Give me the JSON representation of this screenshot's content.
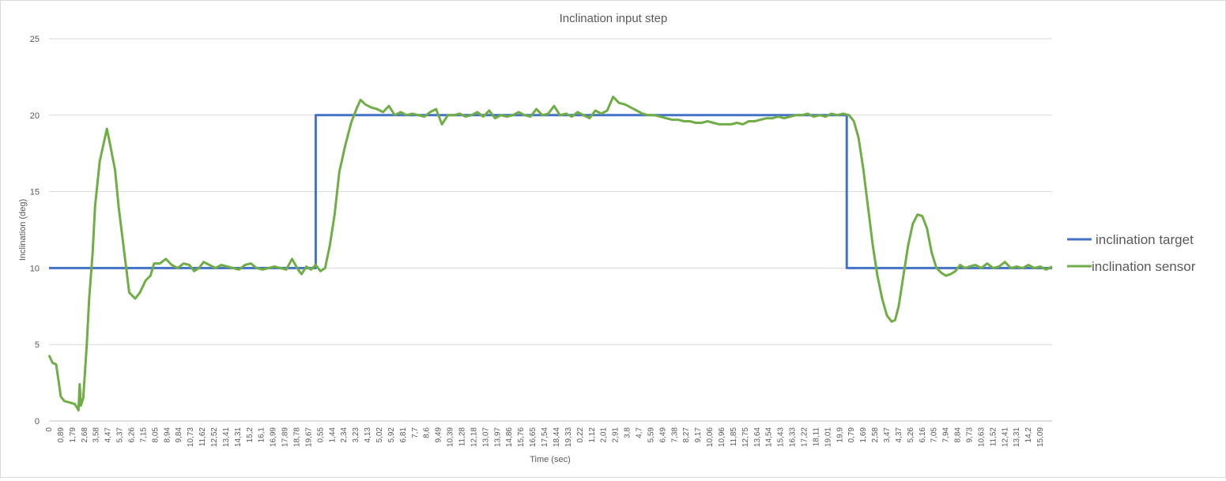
{
  "chart_data": {
    "type": "line",
    "title": "Inclination input step",
    "xlabel": "Time (sec)",
    "ylabel": "Inclination (deg)",
    "ylim": [
      0,
      25
    ],
    "yticks": [
      "0",
      "5",
      "10",
      "15",
      "20",
      "25"
    ],
    "x_categories": [
      "0",
      "0,89",
      "1,79",
      "2,68",
      "3,58",
      "4,47",
      "5,37",
      "6,26",
      "7,15",
      "8,05",
      "8,94",
      "9,84",
      "10,73",
      "11,62",
      "12,52",
      "13,41",
      "14,31",
      "15,2",
      "16,1",
      "16,99",
      "17,89",
      "18,78",
      "19,67",
      "0,55",
      "1,44",
      "2,34",
      "3,23",
      "4,13",
      "5,02",
      "5,92",
      "6,81",
      "7,7",
      "8,6",
      "9,49",
      "10,39",
      "11,28",
      "12,18",
      "13,07",
      "13,97",
      "14,86",
      "15,76",
      "16,65",
      "17,54",
      "18,44",
      "19,33",
      "0,22",
      "1,12",
      "2,01",
      "2,91",
      "3,8",
      "4,7",
      "5,59",
      "6,49",
      "7,38",
      "8,27",
      "9,17",
      "10,06",
      "10,96",
      "11,85",
      "12,75",
      "13,64",
      "14,54",
      "15,43",
      "16,33",
      "17,22",
      "18,11",
      "19,01",
      "19,9",
      "0,79",
      "1,69",
      "2,58",
      "3,47",
      "4,37",
      "5,26",
      "6,16",
      "7,05",
      "7,94",
      "8,84",
      "9,73",
      "10,63",
      "11,52",
      "12,41",
      "13,31",
      "14,2",
      "15,09"
    ],
    "grid": true,
    "legend_position": "right",
    "series": [
      {
        "name": "inclination target",
        "color": "#4472c4",
        "points": [
          [
            0,
            10
          ],
          [
            22.6,
            10
          ],
          [
            22.6,
            20
          ],
          [
            67.6,
            20
          ],
          [
            67.6,
            10
          ],
          [
            85,
            10
          ]
        ]
      },
      {
        "name": "inclination sensor",
        "color": "#70ad47",
        "points": [
          [
            0,
            4.3
          ],
          [
            0.3,
            3.8
          ],
          [
            0.6,
            3.7
          ],
          [
            0.8,
            2.7
          ],
          [
            1.0,
            1.6
          ],
          [
            1.3,
            1.3
          ],
          [
            1.8,
            1.2
          ],
          [
            2.2,
            1.1
          ],
          [
            2.5,
            0.7
          ],
          [
            2.6,
            2.4
          ],
          [
            2.7,
            1.0
          ],
          [
            2.9,
            1.5
          ],
          [
            3.2,
            5.0
          ],
          [
            3.4,
            8.0
          ],
          [
            3.7,
            11.0
          ],
          [
            3.9,
            14.0
          ],
          [
            4.3,
            17.0
          ],
          [
            4.9,
            19.1
          ],
          [
            5.1,
            18.4
          ],
          [
            5.6,
            16.4
          ],
          [
            5.9,
            14.0
          ],
          [
            6.3,
            11.5
          ],
          [
            6.8,
            8.4
          ],
          [
            7.3,
            8.0
          ],
          [
            7.7,
            8.4
          ],
          [
            8.2,
            9.2
          ],
          [
            8.6,
            9.5
          ],
          [
            8.9,
            10.3
          ],
          [
            9.4,
            10.3
          ],
          [
            9.9,
            10.6
          ],
          [
            10.4,
            10.2
          ],
          [
            10.9,
            10.0
          ],
          [
            11.4,
            10.3
          ],
          [
            11.9,
            10.2
          ],
          [
            12.3,
            9.8
          ],
          [
            12.7,
            10.0
          ],
          [
            13.1,
            10.4
          ],
          [
            13.6,
            10.2
          ],
          [
            14.1,
            10.0
          ],
          [
            14.6,
            10.2
          ],
          [
            15.1,
            10.1
          ],
          [
            15.6,
            10.0
          ],
          [
            16.1,
            9.9
          ],
          [
            16.6,
            10.2
          ],
          [
            17.1,
            10.3
          ],
          [
            17.6,
            10.0
          ],
          [
            18.1,
            9.9
          ],
          [
            18.6,
            10.0
          ],
          [
            19.1,
            10.1
          ],
          [
            19.6,
            10.0
          ],
          [
            20.1,
            9.9
          ],
          [
            20.6,
            10.6
          ],
          [
            21.1,
            9.9
          ],
          [
            21.4,
            9.6
          ],
          [
            21.8,
            10.1
          ],
          [
            22.2,
            9.9
          ],
          [
            22.6,
            10.2
          ],
          [
            23.0,
            9.8
          ],
          [
            23.4,
            10.0
          ],
          [
            23.8,
            11.5
          ],
          [
            24.2,
            13.5
          ],
          [
            24.6,
            16.3
          ],
          [
            25.1,
            18.0
          ],
          [
            25.6,
            19.5
          ],
          [
            26.1,
            20.5
          ],
          [
            26.4,
            21.0
          ],
          [
            26.8,
            20.7
          ],
          [
            27.3,
            20.5
          ],
          [
            27.8,
            20.4
          ],
          [
            28.3,
            20.2
          ],
          [
            28.8,
            20.6
          ],
          [
            29.3,
            20.0
          ],
          [
            29.8,
            20.2
          ],
          [
            30.3,
            20.0
          ],
          [
            30.8,
            20.1
          ],
          [
            31.3,
            20.0
          ],
          [
            31.8,
            19.9
          ],
          [
            32.3,
            20.2
          ],
          [
            32.8,
            20.4
          ],
          [
            33.3,
            19.4
          ],
          [
            33.8,
            20.0
          ],
          [
            34.3,
            20.0
          ],
          [
            34.8,
            20.1
          ],
          [
            35.3,
            19.9
          ],
          [
            35.8,
            20.0
          ],
          [
            36.3,
            20.2
          ],
          [
            36.8,
            19.9
          ],
          [
            37.3,
            20.3
          ],
          [
            37.8,
            19.8
          ],
          [
            38.3,
            20.0
          ],
          [
            38.8,
            19.9
          ],
          [
            39.3,
            20.0
          ],
          [
            39.8,
            20.2
          ],
          [
            40.3,
            20.0
          ],
          [
            40.8,
            19.9
          ],
          [
            41.3,
            20.4
          ],
          [
            41.8,
            20.0
          ],
          [
            42.3,
            20.1
          ],
          [
            42.8,
            20.6
          ],
          [
            43.3,
            20.0
          ],
          [
            43.8,
            20.1
          ],
          [
            44.3,
            19.9
          ],
          [
            44.8,
            20.2
          ],
          [
            45.3,
            20.0
          ],
          [
            45.8,
            19.8
          ],
          [
            46.3,
            20.3
          ],
          [
            46.8,
            20.1
          ],
          [
            47.3,
            20.3
          ],
          [
            47.8,
            21.2
          ],
          [
            48.3,
            20.8
          ],
          [
            48.8,
            20.7
          ],
          [
            49.3,
            20.5
          ],
          [
            49.8,
            20.3
          ],
          [
            50.3,
            20.1
          ],
          [
            50.8,
            20.0
          ],
          [
            51.3,
            20.0
          ],
          [
            51.8,
            19.9
          ],
          [
            52.3,
            19.8
          ],
          [
            52.8,
            19.7
          ],
          [
            53.3,
            19.7
          ],
          [
            53.8,
            19.6
          ],
          [
            54.3,
            19.6
          ],
          [
            54.8,
            19.5
          ],
          [
            55.3,
            19.5
          ],
          [
            55.8,
            19.6
          ],
          [
            56.3,
            19.5
          ],
          [
            56.8,
            19.4
          ],
          [
            57.3,
            19.4
          ],
          [
            57.8,
            19.4
          ],
          [
            58.3,
            19.5
          ],
          [
            58.8,
            19.4
          ],
          [
            59.3,
            19.6
          ],
          [
            59.8,
            19.6
          ],
          [
            60.3,
            19.7
          ],
          [
            60.8,
            19.8
          ],
          [
            61.3,
            19.8
          ],
          [
            61.8,
            19.9
          ],
          [
            62.3,
            19.8
          ],
          [
            62.8,
            19.9
          ],
          [
            63.3,
            20.0
          ],
          [
            63.8,
            20.0
          ],
          [
            64.3,
            20.1
          ],
          [
            64.8,
            19.9
          ],
          [
            65.3,
            20.0
          ],
          [
            65.8,
            19.9
          ],
          [
            66.3,
            20.1
          ],
          [
            66.8,
            20.0
          ],
          [
            67.3,
            20.1
          ],
          [
            67.8,
            20.0
          ],
          [
            68.2,
            19.6
          ],
          [
            68.6,
            18.5
          ],
          [
            69.0,
            16.5
          ],
          [
            69.4,
            14.0
          ],
          [
            69.8,
            11.5
          ],
          [
            70.2,
            9.5
          ],
          [
            70.6,
            8.0
          ],
          [
            71.0,
            6.9
          ],
          [
            71.4,
            6.5
          ],
          [
            71.7,
            6.6
          ],
          [
            72.0,
            7.5
          ],
          [
            72.4,
            9.5
          ],
          [
            72.8,
            11.5
          ],
          [
            73.2,
            12.9
          ],
          [
            73.6,
            13.5
          ],
          [
            74.0,
            13.4
          ],
          [
            74.4,
            12.6
          ],
          [
            74.8,
            11.0
          ],
          [
            75.2,
            10.0
          ],
          [
            75.6,
            9.7
          ],
          [
            76.0,
            9.5
          ],
          [
            76.4,
            9.6
          ],
          [
            76.8,
            9.8
          ],
          [
            77.2,
            10.2
          ],
          [
            77.6,
            10.0
          ],
          [
            78.0,
            10.1
          ],
          [
            78.5,
            10.2
          ],
          [
            79.0,
            10.0
          ],
          [
            79.5,
            10.3
          ],
          [
            80.0,
            10.0
          ],
          [
            80.5,
            10.1
          ],
          [
            81.0,
            10.4
          ],
          [
            81.5,
            10.0
          ],
          [
            82.0,
            10.1
          ],
          [
            82.5,
            10.0
          ],
          [
            83.0,
            10.2
          ],
          [
            83.5,
            10.0
          ],
          [
            84.0,
            10.1
          ],
          [
            84.5,
            9.9
          ],
          [
            85.0,
            10.1
          ]
        ]
      }
    ]
  }
}
